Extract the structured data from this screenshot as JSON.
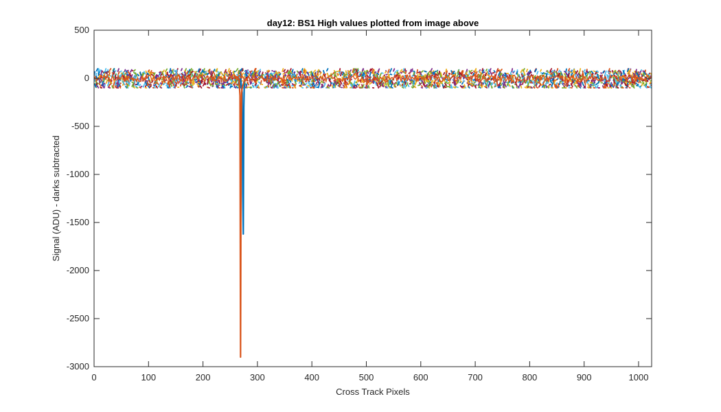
{
  "chart_data": {
    "type": "line",
    "title": "day12: BS1  High values plotted from image above",
    "xlabel": "Cross Track Pixels",
    "ylabel": "Signal (ADU) - darks subtracted",
    "xlim": [
      0,
      1024
    ],
    "ylim": [
      -3000,
      500
    ],
    "xticks": [
      0,
      100,
      200,
      300,
      400,
      500,
      600,
      700,
      800,
      900,
      1000
    ],
    "yticks": [
      500,
      0,
      -500,
      -1000,
      -1500,
      -2000,
      -2500,
      -3000
    ],
    "grid": false,
    "legend": "none",
    "noise_band": {
      "center": 0,
      "low": -100,
      "high": 100
    },
    "series_colors": [
      "#0072BD",
      "#EDB120",
      "#7E2F8E",
      "#77AC30",
      "#4DBEEE",
      "#A2142F",
      "#D95319"
    ],
    "series": [
      {
        "color": "#0072BD",
        "x": [
          269,
          272,
          273,
          274,
          275,
          276,
          278
        ],
        "y": [
          0,
          -150,
          -1200,
          -1620,
          -300,
          -30,
          0
        ]
      },
      {
        "color": "#D95319",
        "x": [
          266,
          268,
          269,
          270,
          271,
          272,
          274,
          276,
          280
        ],
        "y": [
          0,
          -180,
          -2900,
          -700,
          -150,
          -100,
          -60,
          -20,
          0
        ]
      }
    ]
  }
}
